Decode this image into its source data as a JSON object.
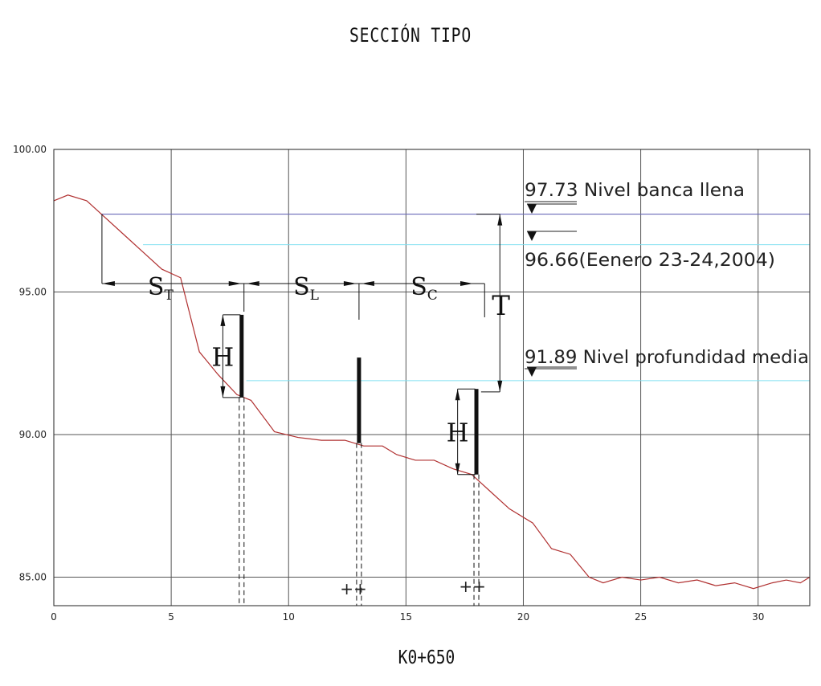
{
  "title": "SECCIÓN TIPO",
  "station": "K0+650",
  "colors": {
    "grid": "#555555",
    "frame": "#222222",
    "terrain": "#b03030",
    "bankfull_line": "#6a6ab8",
    "level_line": "#80e0f0"
  },
  "chart_data": {
    "type": "line",
    "title": "SECCIÓN TIPO",
    "xlabel": "",
    "ylabel": "",
    "xlim": [
      0,
      32.2
    ],
    "ylim": [
      84,
      100
    ],
    "x_ticks": [
      "0",
      "5",
      "10",
      "15",
      "20",
      "25",
      "30"
    ],
    "y_ticks": [
      "85.00",
      "90.00",
      "95.00",
      "100.00"
    ],
    "grid": true,
    "series": [
      {
        "x": [
          0,
          0.6,
          1.4,
          2.2,
          3.0,
          3.8,
          4.6,
          5.4,
          6.2,
          7.0,
          7.8,
          8.4,
          9.4,
          10.4,
          11.4,
          12.4,
          13.2,
          14.0,
          14.6,
          15.4,
          16.2,
          17.0,
          17.8,
          18.2,
          18.6,
          19.4,
          20.4,
          21.2,
          22.0,
          22.8,
          23.4,
          24.2,
          25.0,
          25.8,
          26.6,
          27.4,
          28.2,
          29.0,
          29.8,
          30.6,
          31.2,
          31.8,
          32.2
        ],
        "y": [
          98.2,
          98.4,
          98.2,
          97.6,
          97.0,
          96.4,
          95.8,
          95.5,
          92.9,
          92.1,
          91.4,
          91.2,
          90.1,
          89.9,
          89.8,
          89.8,
          89.6,
          89.6,
          89.3,
          89.1,
          89.1,
          88.8,
          88.6,
          88.3,
          88.0,
          87.4,
          86.9,
          86.0,
          85.8,
          85.0,
          84.8,
          85.0,
          84.9,
          85.0,
          84.8,
          84.9,
          84.7,
          84.8,
          84.6,
          84.8,
          84.9,
          84.8,
          85.0
        ]
      }
    ],
    "levels": [
      {
        "value": 97.73,
        "value_label": "97.73",
        "label": "Nivel banca llena"
      },
      {
        "value": 96.66,
        "value_label": "96.66",
        "label": "(Eenero 23-24,2004)"
      },
      {
        "value": 91.89,
        "value_label": "91.89",
        "label": "Nivel profundidad media"
      }
    ],
    "annotations": {
      "spacing_labels": [
        {
          "main": "S",
          "sub": "T"
        },
        {
          "main": "S",
          "sub": "L"
        },
        {
          "main": "S",
          "sub": "C"
        }
      ],
      "height_label": "H",
      "depth_label": "T",
      "markers": [
        "++",
        "++"
      ]
    }
  }
}
